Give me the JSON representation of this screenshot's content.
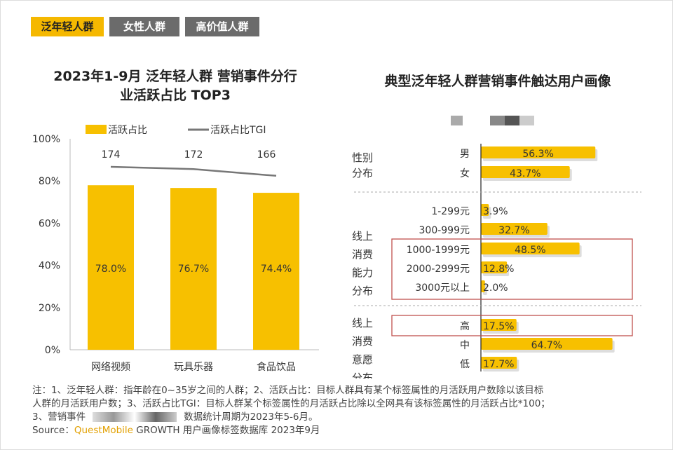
{
  "tabs": [
    {
      "label": "泛年轻人群",
      "active": true
    },
    {
      "label": "女性人群",
      "active": false
    },
    {
      "label": "高价值人群",
      "active": false
    }
  ],
  "notes": {
    "line1": "注：1、泛年轻人群：指年龄在0~35岁之间的人群；2、活跃占比：目标人群具有某个标签属性的月活跃用户数除以该目标",
    "line2": "人群的月活跃用户数；3、活跃占比TGI：目标人群某个标签属性的月活跃占比除以全网具有该标签属性的月活跃占比*100；",
    "line3a": "3、营销事件",
    "line3b": "数据统计周期为2023年5-6月。",
    "source_label": "Source：",
    "source_brand": "QuestMobile",
    "source_rest": " GROWTH 用户画像标签数据库 2023年9月"
  },
  "chart_data": [
    {
      "type": "bar",
      "title": "2023年1-9月 泛年轻人群 营销事件分行业活跃占比 TOP3",
      "title_line1": "2023年1-9月 泛年轻人群 营销事件分行",
      "title_line2": "业活跃占比 TOP3",
      "categories": [
        "网络视频",
        "玩具乐器",
        "食品饮品"
      ],
      "series": [
        {
          "name": "活跃占比",
          "values": [
            78.0,
            76.7,
            74.4
          ],
          "labels": [
            "78.0%",
            "76.7%",
            "74.4%"
          ],
          "color": "#f7c000"
        },
        {
          "name": "活跃占比TGI",
          "type": "line",
          "values": [
            174,
            172,
            166
          ],
          "color": "#777"
        }
      ],
      "yticks": [
        "0%",
        "20%",
        "40%",
        "60%",
        "80%",
        "100%"
      ],
      "ylim": [
        0,
        100
      ],
      "legend": "top"
    },
    {
      "type": "bar",
      "orientation": "horizontal",
      "title": "典型泛年轻人群营销事件触达用户画像",
      "groups": [
        {
          "name": "性别\n分布",
          "lines": [
            "性别",
            "分布"
          ],
          "items": [
            {
              "label": "男",
              "value": 56.3
            },
            {
              "label": "女",
              "value": 43.7
            }
          ]
        },
        {
          "name": "线上消费能力分布",
          "lines": [
            "线上",
            "消费",
            "能力",
            "分布"
          ],
          "items": [
            {
              "label": "1-299元",
              "value": 3.9
            },
            {
              "label": "300-999元",
              "value": 32.7
            },
            {
              "label": "1000-1999元",
              "value": 48.5,
              "highlight": true
            },
            {
              "label": "2000-2999元",
              "value": 12.8,
              "highlight": true
            },
            {
              "label": "3000元以上",
              "value": 2.0,
              "highlight": true
            }
          ]
        },
        {
          "name": "线上消费意愿分布",
          "lines": [
            "线上",
            "消费",
            "意愿",
            "分布"
          ],
          "items": [
            {
              "label": "高",
              "value": 17.5,
              "highlight": true
            },
            {
              "label": "中",
              "value": 64.7
            },
            {
              "label": "低",
              "value": 17.7
            }
          ]
        }
      ],
      "color": "#f7c000",
      "highlight_color": "#c0504d",
      "xlim": [
        0,
        100
      ]
    }
  ]
}
